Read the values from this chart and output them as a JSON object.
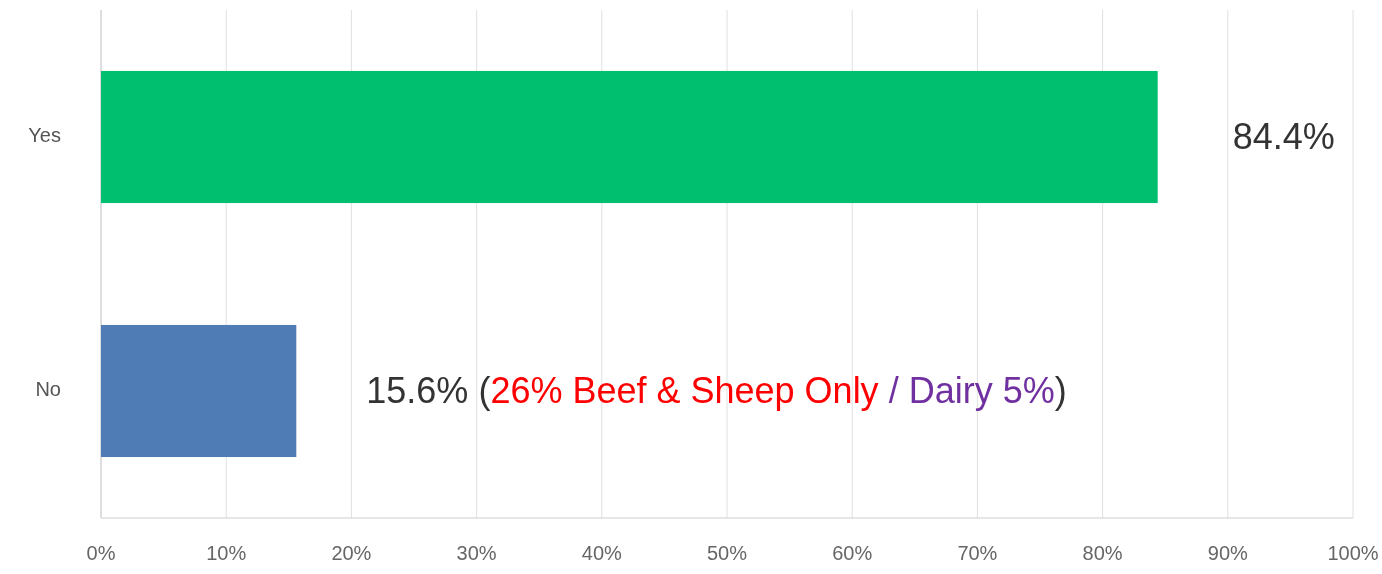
{
  "chart_data": {
    "type": "bar",
    "orientation": "horizontal",
    "categories": [
      "Yes",
      "No"
    ],
    "values": [
      84.4,
      15.6
    ],
    "colors": [
      "#00bf6f",
      "#507cb6"
    ],
    "value_labels": [
      "84.4%",
      "15.6%"
    ],
    "annotations": [
      "(",
      "26% Beef & Sheep Only",
      "/",
      "Dairy 5%",
      ")"
    ],
    "xlim": [
      0,
      100
    ],
    "xticks": [
      {
        "value": 0,
        "label": "0%"
      },
      {
        "value": 10,
        "label": "10%"
      },
      {
        "value": 20,
        "label": "20%"
      },
      {
        "value": 30,
        "label": "30%"
      },
      {
        "value": 40,
        "label": "40%"
      },
      {
        "value": 50,
        "label": "50%"
      },
      {
        "value": 60,
        "label": "60%"
      },
      {
        "value": 70,
        "label": "70%"
      },
      {
        "value": 80,
        "label": "80%"
      },
      {
        "value": 90,
        "label": "90%"
      },
      {
        "value": 100,
        "label": "100%"
      }
    ],
    "grid": "x"
  }
}
